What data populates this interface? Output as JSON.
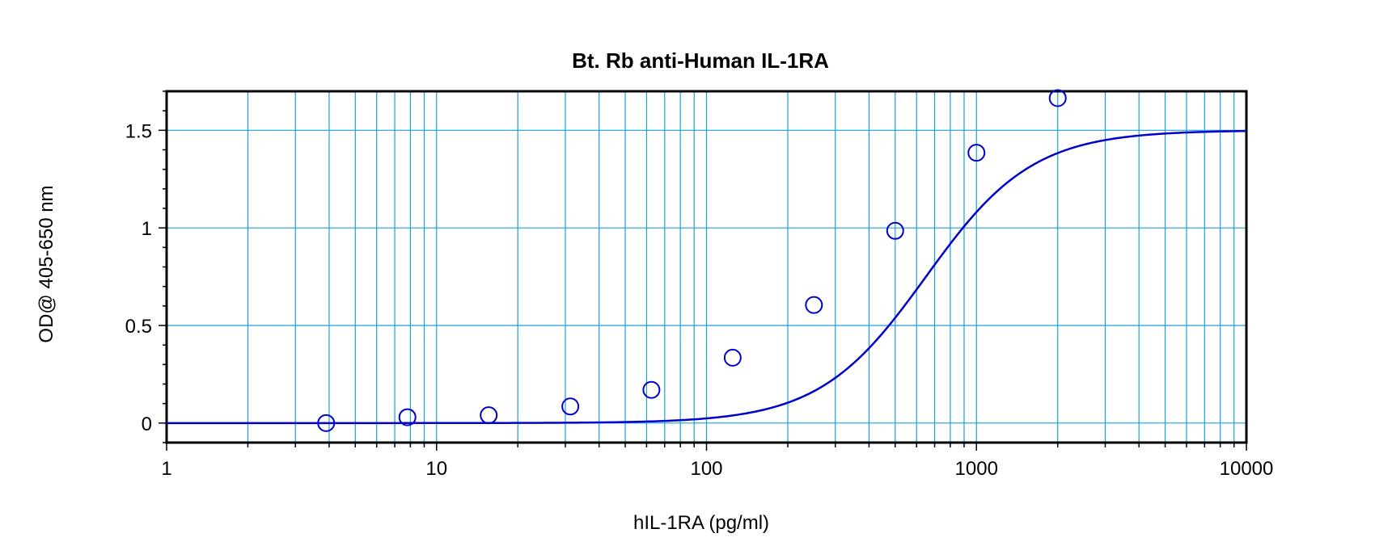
{
  "chart_data": {
    "type": "scatter",
    "title": "Bt. Rb anti-Human IL-1RA",
    "xlabel": "hIL-1RA (pg/ml)",
    "ylabel": "OD@ 405-650 nm",
    "x_scale": "log",
    "xlim": [
      1,
      10000
    ],
    "ylim": [
      -0.1,
      1.7
    ],
    "x_ticks": [
      1,
      10,
      100,
      1000,
      10000
    ],
    "x_tick_labels": [
      "1",
      "10",
      "100",
      "1000",
      "10000"
    ],
    "y_ticks": [
      0,
      0.5,
      1,
      1.5
    ],
    "y_tick_labels": [
      "0",
      "0.5",
      "1",
      "1.5"
    ],
    "grid": true,
    "colors": {
      "series": "#0000cc",
      "grid": "#1aa0dc",
      "frame": "#000000"
    },
    "series": [
      {
        "marker": "open-circle",
        "x": [
          3.9,
          7.8,
          15.6,
          31.3,
          62.5,
          125,
          250,
          500,
          1000,
          2000
        ],
        "y": [
          0.0,
          0.03,
          0.04,
          0.085,
          0.17,
          0.335,
          0.605,
          0.985,
          1.385,
          1.665
        ]
      }
    ],
    "fit_curve": {
      "model": "4PL",
      "A": 0.0,
      "B": 1.5,
      "C": 650,
      "D": 2.2
    }
  }
}
